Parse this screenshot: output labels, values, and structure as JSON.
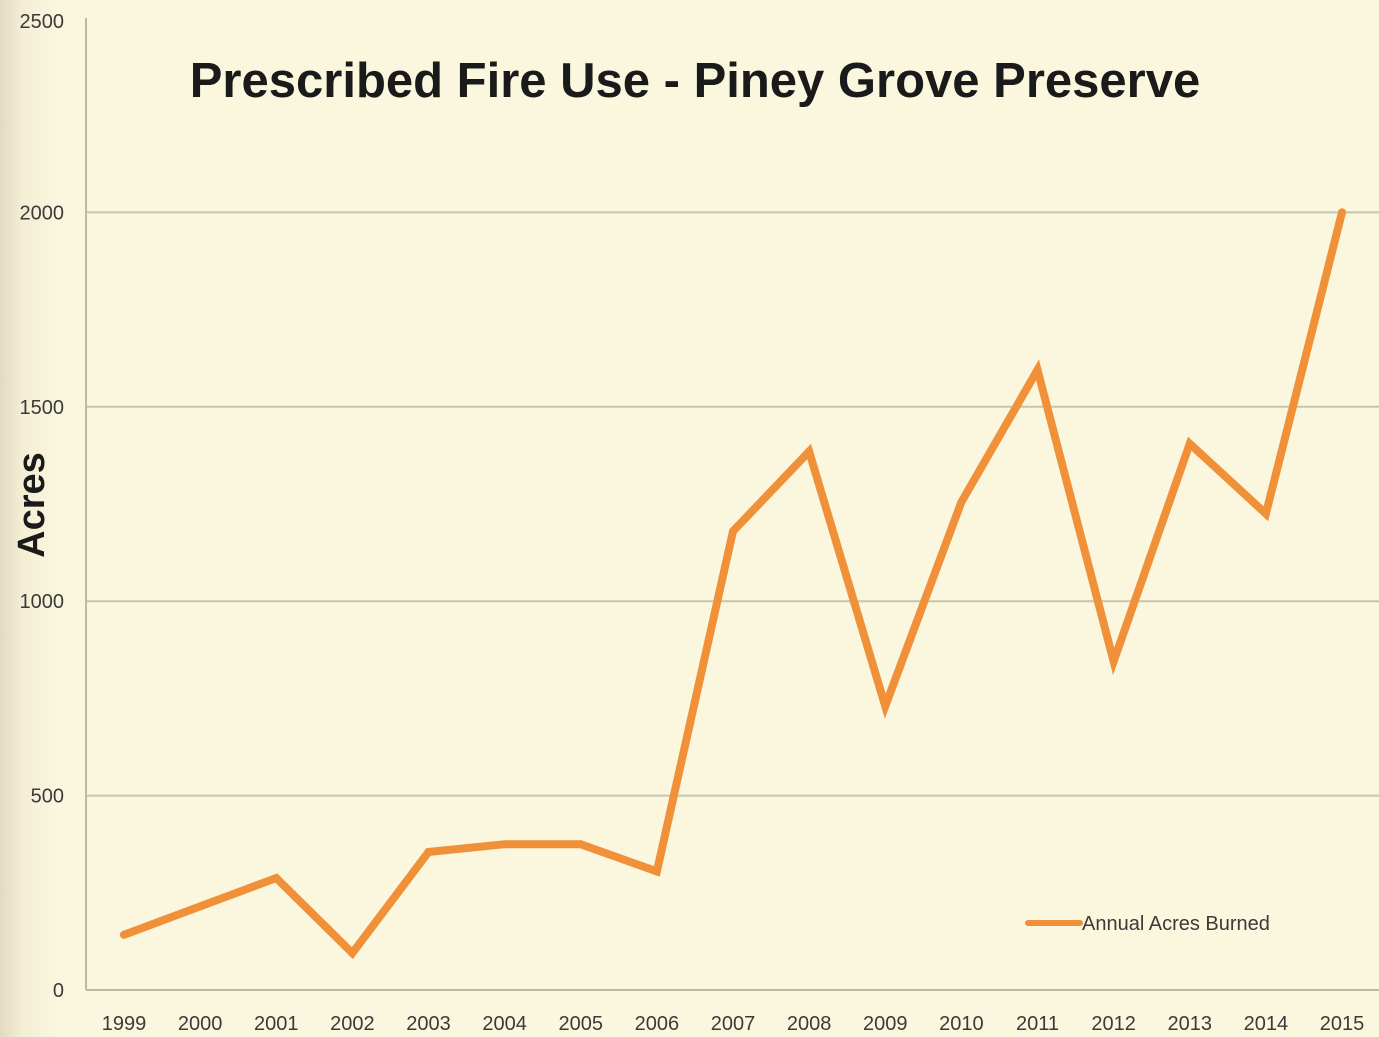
{
  "chart_data": {
    "type": "line",
    "title": "Prescribed Fire Use - Piney Grove Preserve",
    "xlabel": "",
    "ylabel": "Acres",
    "x": [
      "1999",
      "2000",
      "2001",
      "2002",
      "2003",
      "2004",
      "2005",
      "2006",
      "2007",
      "2008",
      "2009",
      "2010",
      "2011",
      "2012",
      "2013",
      "2014",
      "2015"
    ],
    "series": [
      {
        "name": "Annual Acres Burned",
        "color": "#f0913a",
        "values": [
          142,
          215,
          288,
          95,
          355,
          375,
          375,
          305,
          1180,
          1385,
          730,
          1255,
          1595,
          845,
          1405,
          1225,
          2000
        ]
      }
    ],
    "ylim": [
      0,
      2500
    ],
    "yticks": [
      "0",
      "500",
      "1000",
      "1500",
      "2000",
      "2500"
    ],
    "grid": true,
    "legend_position": "bottom-right"
  }
}
